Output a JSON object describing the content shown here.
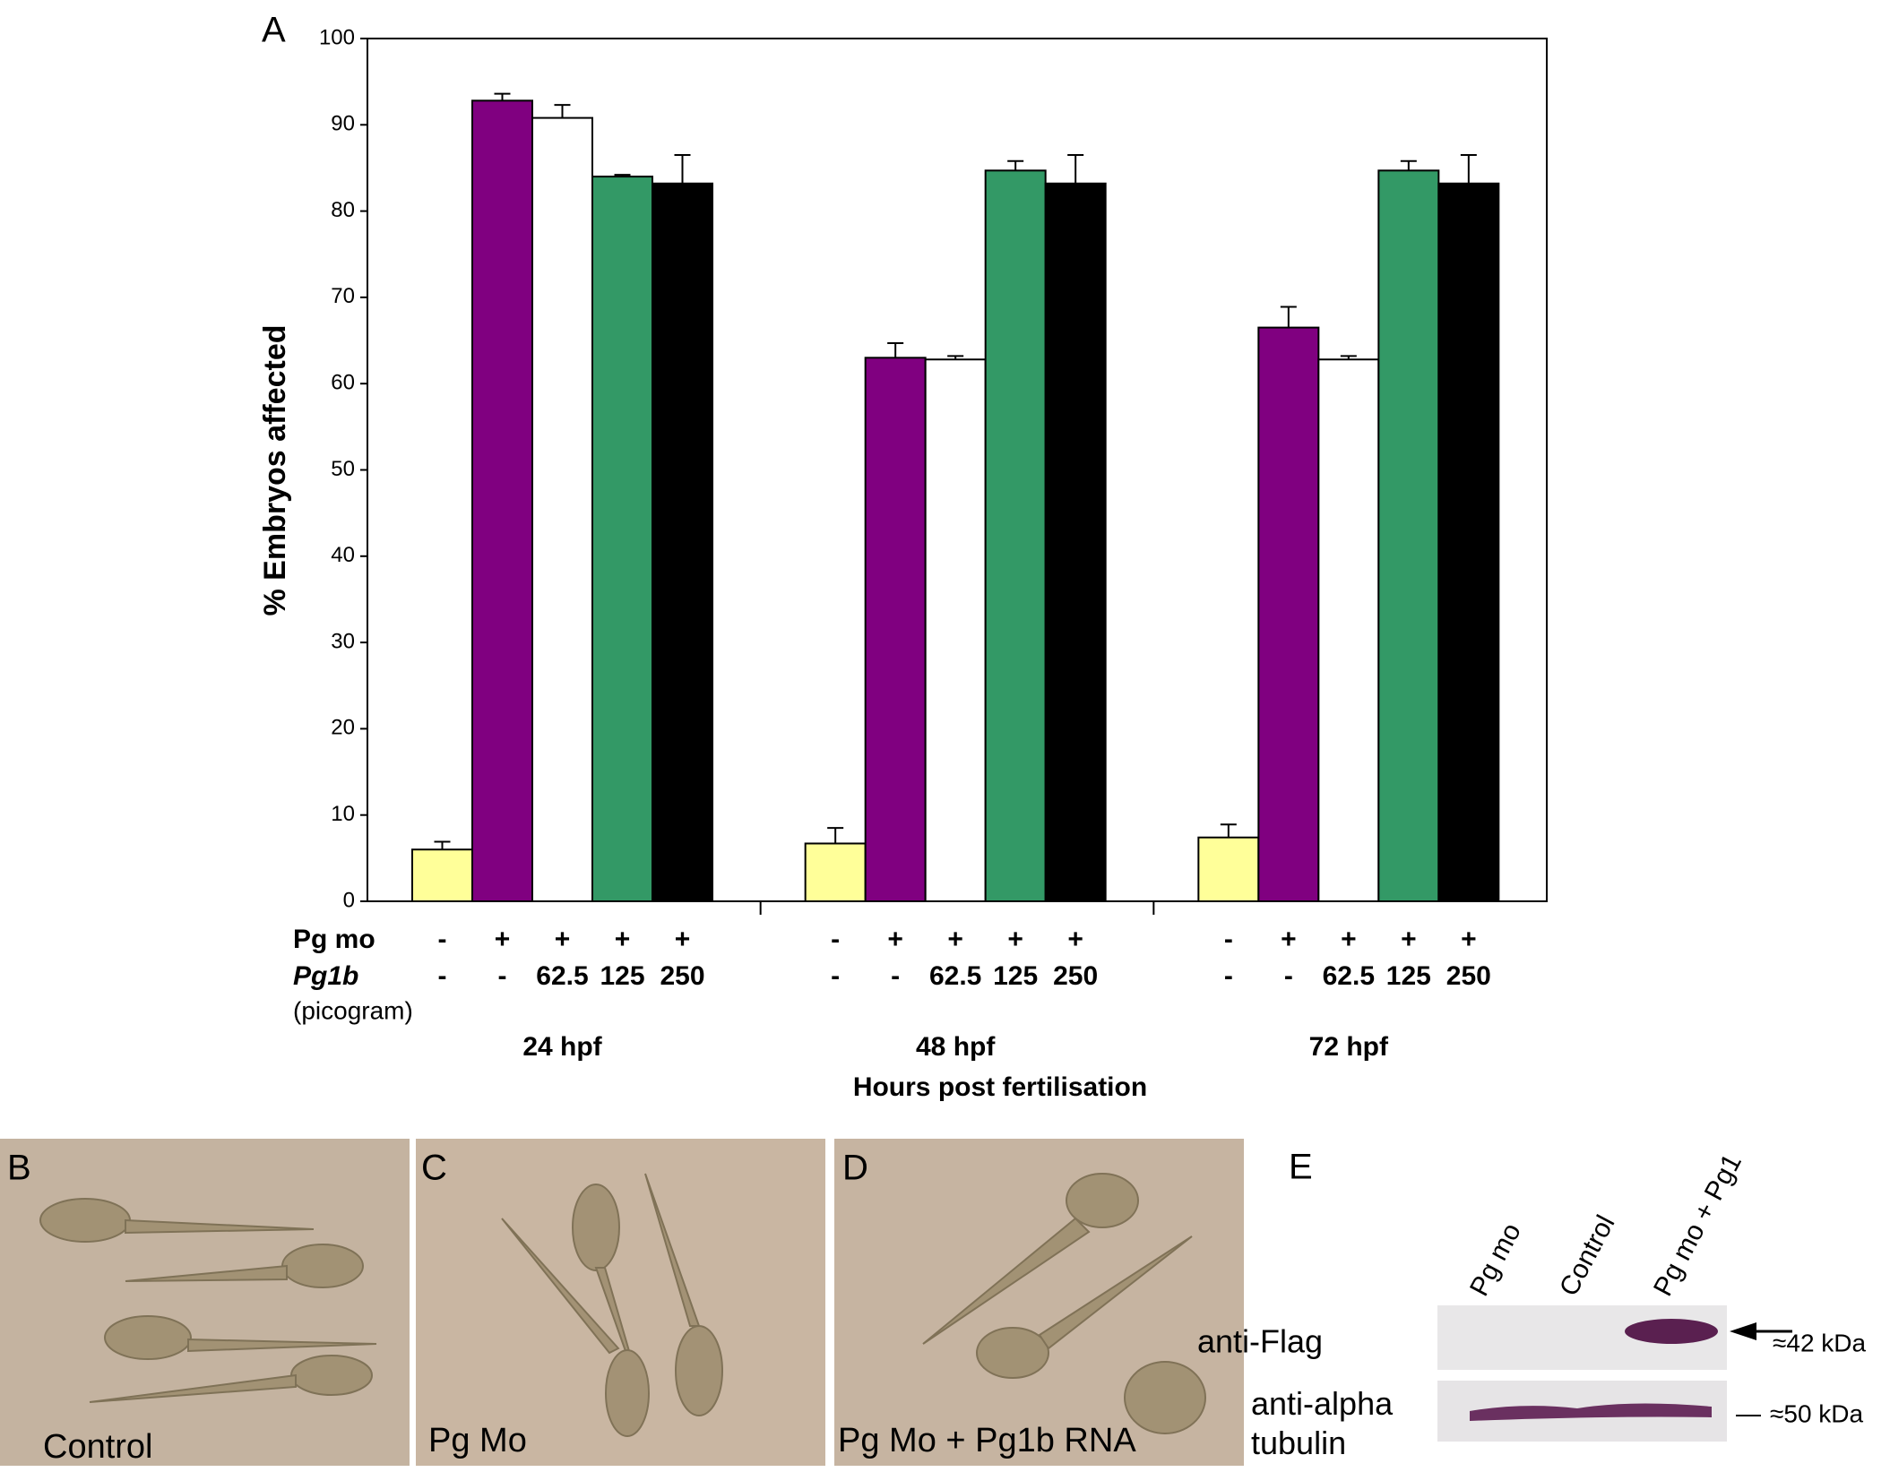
{
  "chart_data": {
    "type": "bar",
    "panel_letter": "A",
    "ylabel": "% Embryos affected",
    "xlabel": "Hours post fertilisation",
    "categories": [
      "24 hpf",
      "48 hpf",
      "72 hpf"
    ],
    "ylim": [
      0,
      100
    ],
    "yticks": [
      0,
      10,
      20,
      30,
      40,
      50,
      60,
      70,
      80,
      90,
      100
    ],
    "series": [
      {
        "color": "#ffff99",
        "values": [
          6,
          6.7,
          7.4
        ],
        "errors": [
          0.9,
          1.8,
          1.5
        ]
      },
      {
        "color": "#800080",
        "values": [
          92.8,
          63,
          66.5
        ],
        "errors": [
          0.8,
          1.7,
          2.4
        ]
      },
      {
        "color": "#ffffff",
        "values": [
          90.8,
          62.8,
          62.8
        ],
        "errors": [
          1.5,
          0.4,
          0.4
        ]
      },
      {
        "color": "#339966",
        "values": [
          84,
          84.7,
          84.7
        ],
        "errors": [
          0.2,
          1.1,
          1.1
        ]
      },
      {
        "color": "#000000",
        "values": [
          83.2,
          83.2,
          83.2
        ],
        "errors": [
          3.3,
          3.3,
          3.3
        ]
      }
    ],
    "conditions": [
      {
        "label": "Pg mo",
        "values": [
          "-",
          "+",
          "+",
          "+",
          "+"
        ]
      },
      {
        "label": "Pg1b",
        "values": [
          "-",
          "-",
          "62.5",
          "125",
          "250"
        ]
      }
    ],
    "unit_note": "(picogram)"
  },
  "panels": [
    {
      "letter": "B",
      "caption": "Control"
    },
    {
      "letter": "C",
      "caption": "Pg Mo"
    },
    {
      "letter": "D",
      "caption": "Pg Mo + Pg1b RNA"
    }
  ],
  "blot": {
    "letter": "E",
    "lanes": [
      "Pg mo",
      "Control",
      "Pg mo + Pg1"
    ],
    "rows": [
      {
        "label": "anti-Flag",
        "size": "≈42 kDa"
      },
      {
        "label": "anti-alpha tubulin",
        "size": "≈50 kDa"
      }
    ]
  }
}
